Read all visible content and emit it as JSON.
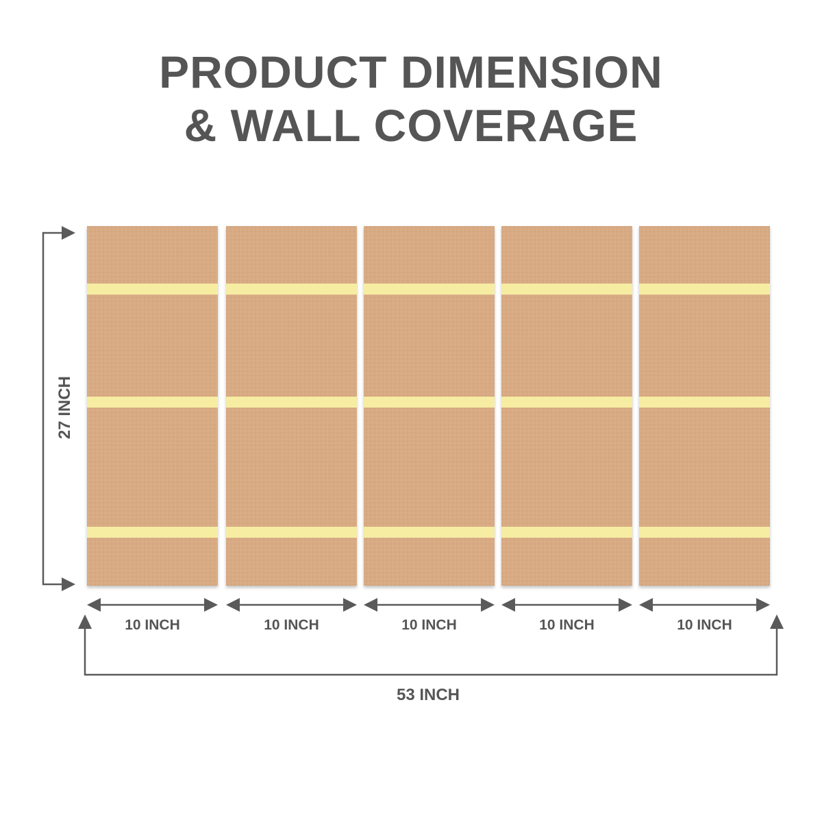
{
  "title": {
    "line1": "PRODUCT DIMENSION",
    "line2": "& WALL COVERAGE"
  },
  "panels": {
    "count": 5,
    "strips_per_panel": 3
  },
  "dimensions": {
    "height_label": "27 INCH",
    "panel_width_labels": [
      "10 INCH",
      "10 INCH",
      "10 INCH",
      "10 INCH",
      "10 INCH"
    ],
    "total_width_label": "53 INCH"
  },
  "colors": {
    "text": "#555555",
    "panel": "#d8ab84",
    "strip": "#f6eda3",
    "arrow": "#5a5a5a"
  }
}
